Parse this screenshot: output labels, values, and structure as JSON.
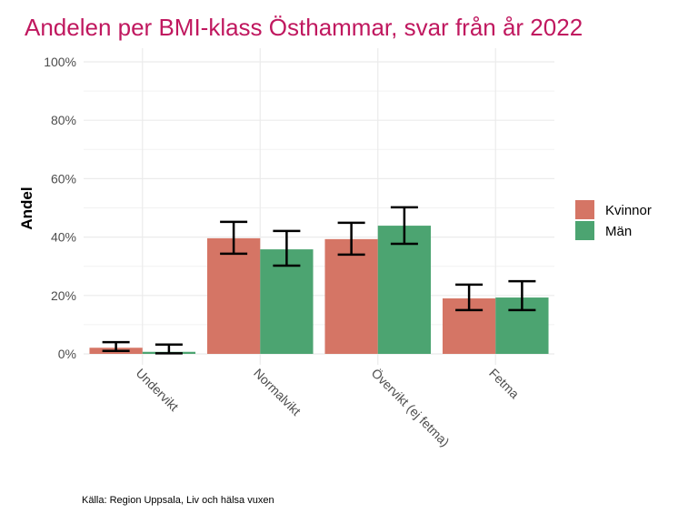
{
  "chart_data": {
    "type": "bar",
    "title": "Andelen per BMI-klass Östhammar, svar från år 2022",
    "xlabel": "",
    "ylabel": "Andel",
    "ylim": [
      0,
      100
    ],
    "yticks": [
      "0%",
      "20%",
      "40%",
      "60%",
      "80%",
      "100%"
    ],
    "ytick_values": [
      0,
      20,
      40,
      60,
      80,
      100
    ],
    "categories": [
      "Undervikt",
      "Normalvikt",
      "Övervikt (ej fetma)",
      "Fetma"
    ],
    "series": [
      {
        "name": "Kvinnor",
        "color": "#d57565",
        "values": [
          2.1,
          39.6,
          39.3,
          19.0
        ],
        "err_low": [
          1.0,
          34.3,
          34.0,
          15.0
        ],
        "err_high": [
          4.0,
          45.2,
          44.9,
          23.7
        ]
      },
      {
        "name": "Män",
        "color": "#4ca471",
        "values": [
          0.7,
          35.8,
          43.9,
          19.3
        ],
        "err_low": [
          0.2,
          30.2,
          37.7,
          15.0
        ],
        "err_high": [
          3.2,
          42.1,
          50.2,
          24.9
        ]
      }
    ],
    "legend": "right",
    "grid": true,
    "caption": "Källa: Region Uppsala, Liv och hälsa vuxen"
  }
}
